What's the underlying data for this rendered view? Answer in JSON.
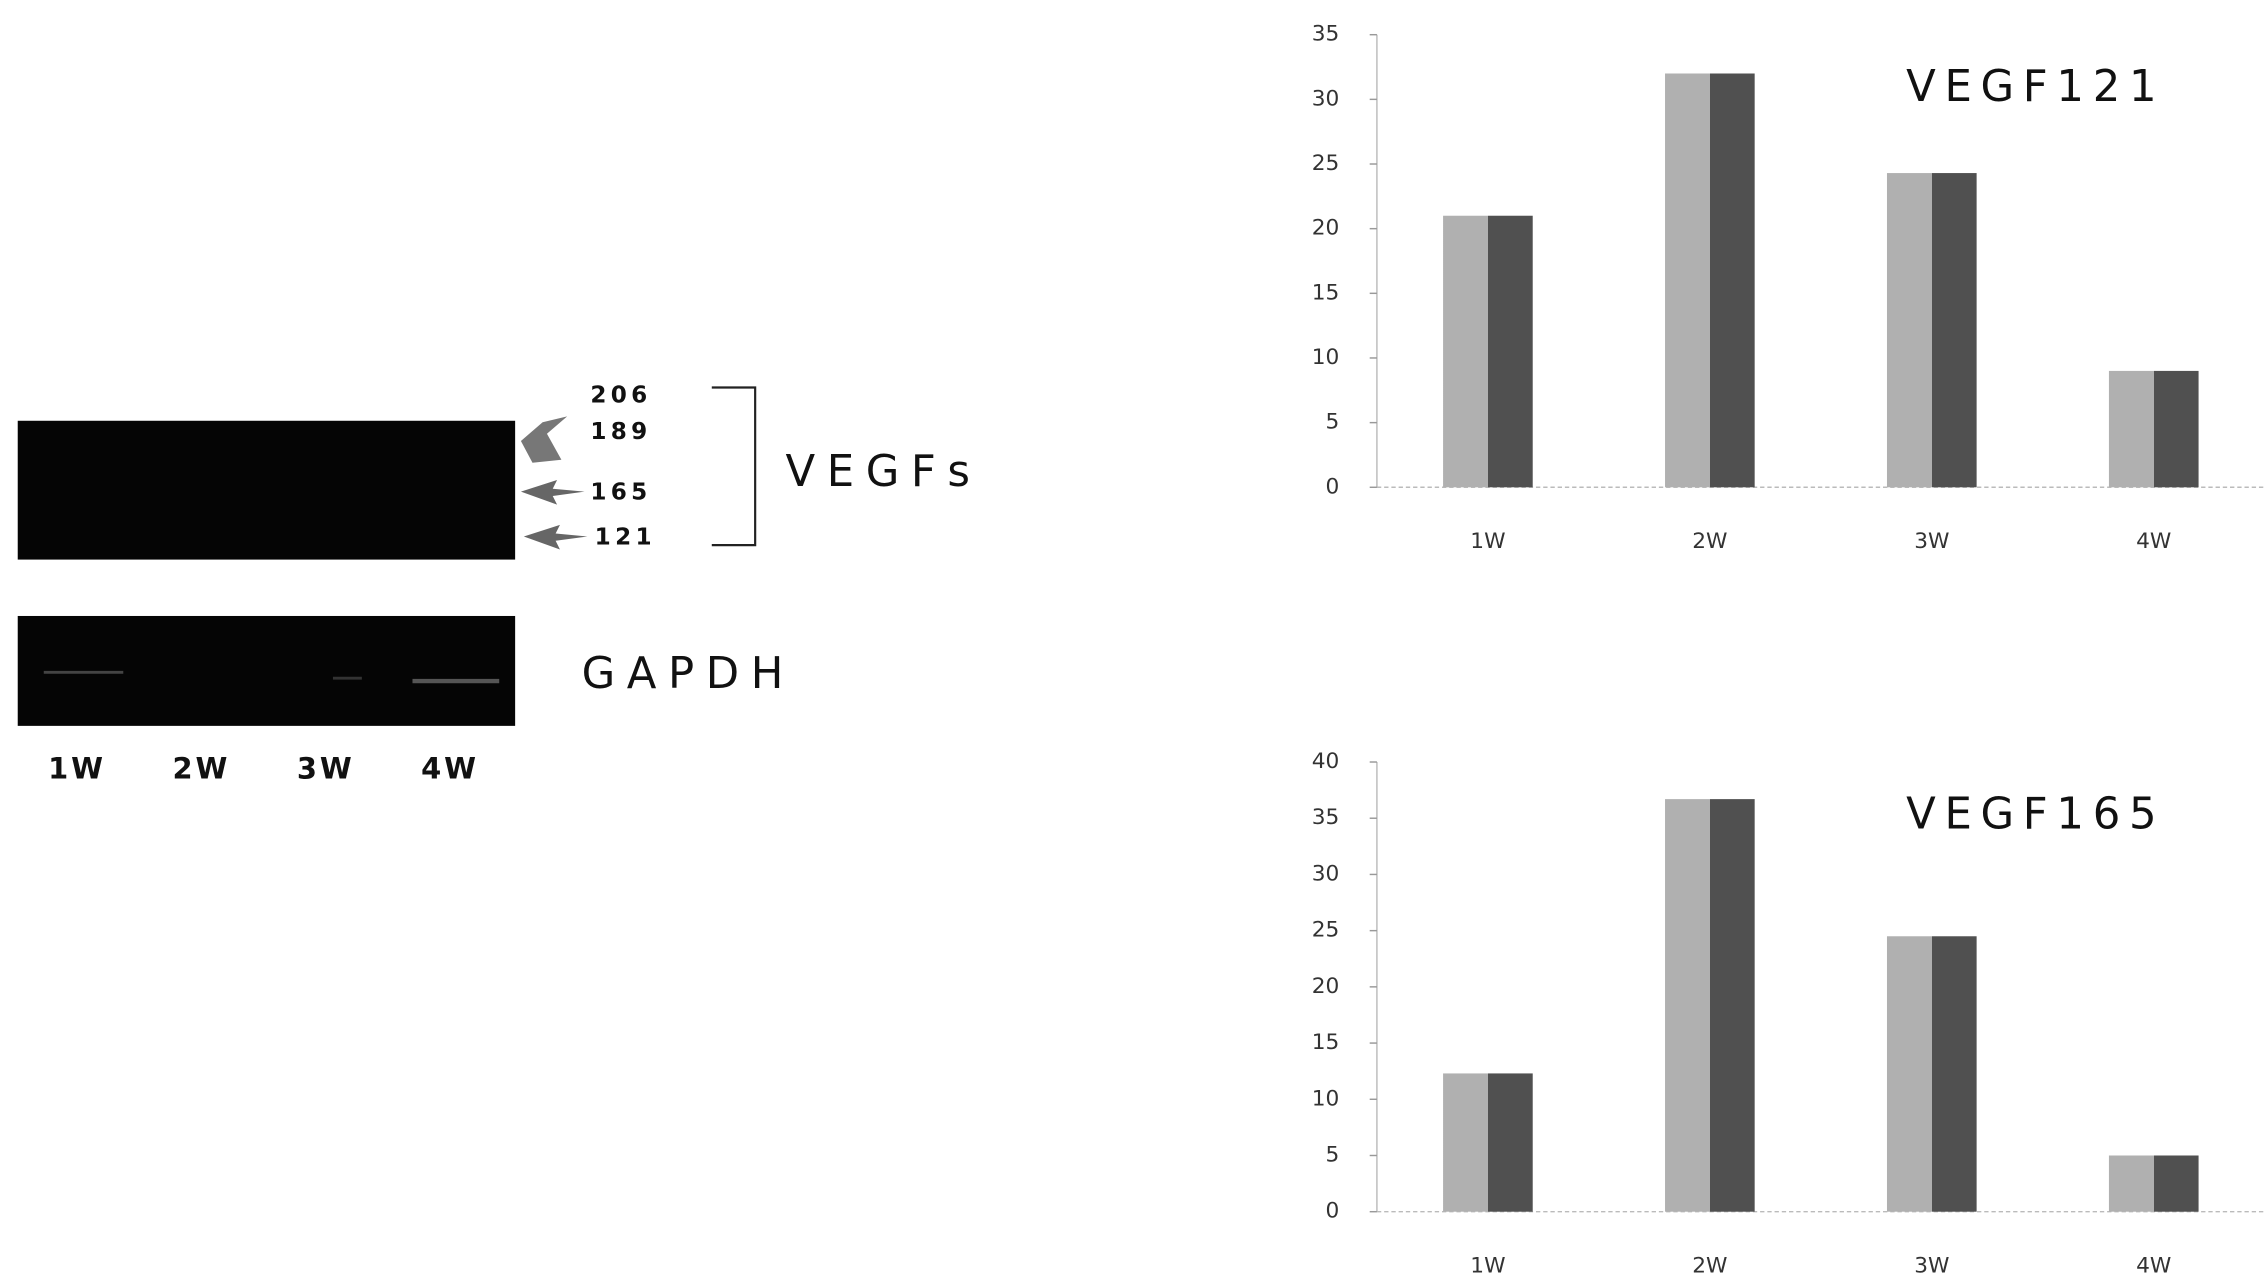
{
  "gel": {
    "bands": [
      "206",
      "189",
      "165",
      "121"
    ],
    "group_label": "VEGFs",
    "control_label": "GAPDH",
    "lanes": [
      "1W",
      "2W",
      "3W",
      "4W"
    ]
  },
  "chart_data": [
    {
      "type": "bar",
      "title": "VEGF121",
      "categories": [
        "1W",
        "2W",
        "3W",
        "4W"
      ],
      "values": [
        21,
        32,
        24.3,
        9
      ],
      "colors": [
        "#b0b0b0",
        "#505050"
      ],
      "ylim": [
        0,
        35
      ],
      "yticks": [
        0,
        5,
        10,
        15,
        20,
        25,
        30,
        35
      ]
    },
    {
      "type": "bar",
      "title": "VEGF165",
      "categories": [
        "1W",
        "2W",
        "3W",
        "4W"
      ],
      "values": [
        12.3,
        36.7,
        24.5,
        5
      ],
      "colors": [
        "#b0b0b0",
        "#505050"
      ],
      "ylim": [
        0,
        40
      ],
      "yticks": [
        0,
        5,
        10,
        15,
        20,
        25,
        30,
        35,
        40
      ]
    }
  ]
}
